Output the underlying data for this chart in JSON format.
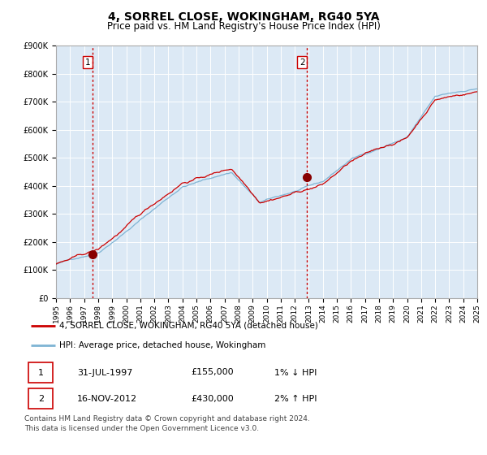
{
  "title": "4, SORREL CLOSE, WOKINGHAM, RG40 5YA",
  "subtitle": "Price paid vs. HM Land Registry's House Price Index (HPI)",
  "ylim": [
    0,
    900000
  ],
  "yticks": [
    0,
    100000,
    200000,
    300000,
    400000,
    500000,
    600000,
    700000,
    800000,
    900000
  ],
  "ytick_labels": [
    "£0",
    "£100K",
    "£200K",
    "£300K",
    "£400K",
    "£500K",
    "£600K",
    "£700K",
    "£800K",
    "£900K"
  ],
  "background_color": "#ffffff",
  "plot_bg_color": "#dce9f5",
  "grid_color": "#ffffff",
  "line_color_hpi": "#7fb4d4",
  "line_color_price": "#cc0000",
  "marker_color": "#880000",
  "vline_color": "#cc0000",
  "purchase1_date": 1997.58,
  "purchase1_price": 155000,
  "purchase2_date": 2012.88,
  "purchase2_price": 430000,
  "legend_line1": "4, SORREL CLOSE, WOKINGHAM, RG40 5YA (detached house)",
  "legend_line2": "HPI: Average price, detached house, Wokingham",
  "table_row1": [
    "1",
    "31-JUL-1997",
    "£155,000",
    "1% ↓ HPI"
  ],
  "table_row2": [
    "2",
    "16-NOV-2012",
    "£430,000",
    "2% ↑ HPI"
  ],
  "footer": "Contains HM Land Registry data © Crown copyright and database right 2024.\nThis data is licensed under the Open Government Licence v3.0.",
  "title_fontsize": 10,
  "subtitle_fontsize": 8.5,
  "tick_fontsize": 7,
  "footer_fontsize": 6.5,
  "xlim_start": 1995,
  "xlim_end": 2025,
  "xtick_years": [
    1995,
    1996,
    1997,
    1998,
    1999,
    2000,
    2001,
    2002,
    2003,
    2004,
    2005,
    2006,
    2007,
    2008,
    2009,
    2010,
    2011,
    2012,
    2013,
    2014,
    2015,
    2016,
    2017,
    2018,
    2019,
    2020,
    2021,
    2022,
    2023,
    2024,
    2025
  ]
}
